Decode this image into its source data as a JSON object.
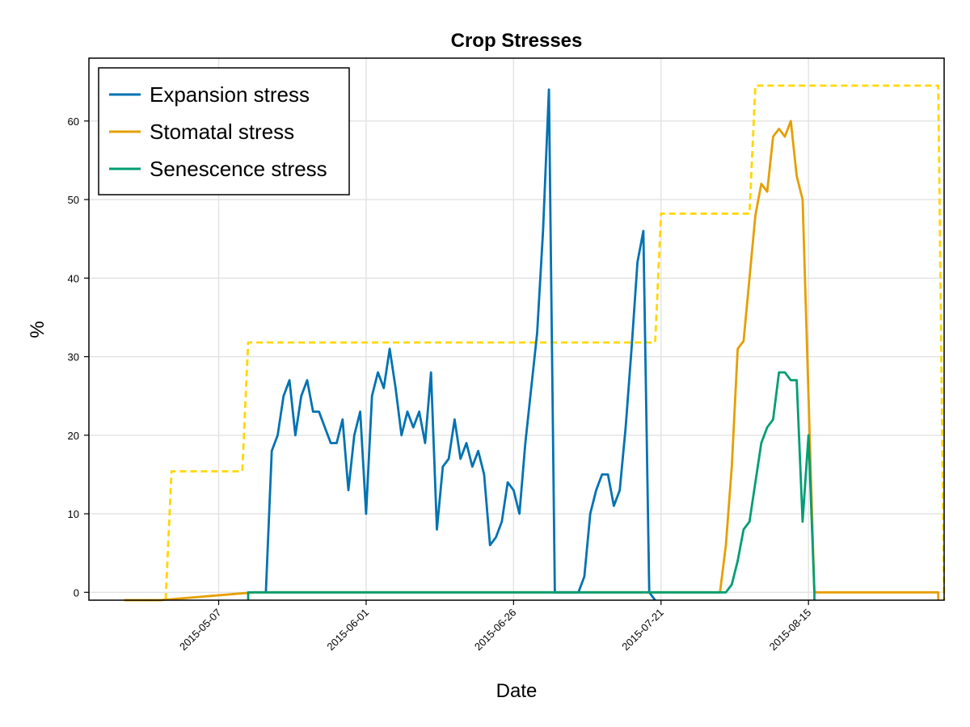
{
  "chart_data": {
    "type": "line",
    "title": "Crop Stresses",
    "xlabel": "Date",
    "ylabel": "%",
    "xlim": [
      "2015-04-15",
      "2015-09-07"
    ],
    "ylim": [
      -1,
      68
    ],
    "x_ticks": [
      "2015-05-07",
      "2015-06-01",
      "2015-06-26",
      "2015-07-21",
      "2015-08-15"
    ],
    "y_ticks": [
      0,
      10,
      20,
      30,
      40,
      50,
      60
    ],
    "grid": true,
    "legend_position": "top-left",
    "series": [
      {
        "name": "Expansion stress",
        "color": "#0072b2",
        "style": "solid",
        "points": [
          [
            "2015-05-15",
            0
          ],
          [
            "2015-05-16",
            18
          ],
          [
            "2015-05-17",
            20
          ],
          [
            "2015-05-18",
            25
          ],
          [
            "2015-05-19",
            27
          ],
          [
            "2015-05-20",
            20
          ],
          [
            "2015-05-21",
            25
          ],
          [
            "2015-05-22",
            27
          ],
          [
            "2015-05-23",
            23
          ],
          [
            "2015-05-24",
            23
          ],
          [
            "2015-05-25",
            21
          ],
          [
            "2015-05-26",
            19
          ],
          [
            "2015-05-27",
            19
          ],
          [
            "2015-05-28",
            22
          ],
          [
            "2015-05-29",
            13
          ],
          [
            "2015-05-30",
            20
          ],
          [
            "2015-05-31",
            23
          ],
          [
            "2015-06-01",
            10
          ],
          [
            "2015-06-02",
            25
          ],
          [
            "2015-06-03",
            28
          ],
          [
            "2015-06-04",
            26
          ],
          [
            "2015-06-05",
            31
          ],
          [
            "2015-06-06",
            26
          ],
          [
            "2015-06-07",
            20
          ],
          [
            "2015-06-08",
            23
          ],
          [
            "2015-06-09",
            21
          ],
          [
            "2015-06-10",
            23
          ],
          [
            "2015-06-11",
            19
          ],
          [
            "2015-06-12",
            28
          ],
          [
            "2015-06-13",
            8
          ],
          [
            "2015-06-14",
            16
          ],
          [
            "2015-06-15",
            17
          ],
          [
            "2015-06-16",
            22
          ],
          [
            "2015-06-17",
            17
          ],
          [
            "2015-06-18",
            19
          ],
          [
            "2015-06-19",
            16
          ],
          [
            "2015-06-20",
            18
          ],
          [
            "2015-06-21",
            15
          ],
          [
            "2015-06-22",
            6
          ],
          [
            "2015-06-23",
            7
          ],
          [
            "2015-06-24",
            9
          ],
          [
            "2015-06-25",
            14
          ],
          [
            "2015-06-26",
            13
          ],
          [
            "2015-06-27",
            10
          ],
          [
            "2015-06-28",
            19
          ],
          [
            "2015-06-29",
            26
          ],
          [
            "2015-06-30",
            33
          ],
          [
            "2015-07-01",
            46
          ],
          [
            "2015-07-02",
            64
          ],
          [
            "2015-07-03",
            0
          ],
          [
            "2015-07-04",
            0
          ],
          [
            "2015-07-05",
            0
          ],
          [
            "2015-07-06",
            0
          ],
          [
            "2015-07-07",
            0
          ],
          [
            "2015-07-08",
            2
          ],
          [
            "2015-07-09",
            10
          ],
          [
            "2015-07-10",
            13
          ],
          [
            "2015-07-11",
            15
          ],
          [
            "2015-07-12",
            15
          ],
          [
            "2015-07-13",
            11
          ],
          [
            "2015-07-14",
            13
          ],
          [
            "2015-07-15",
            21
          ],
          [
            "2015-07-16",
            31
          ],
          [
            "2015-07-17",
            42
          ],
          [
            "2015-07-18",
            46
          ],
          [
            "2015-07-19",
            0
          ],
          [
            "2015-07-20",
            -1
          ]
        ]
      },
      {
        "name": "Stomatal stress",
        "color": "#e69f00",
        "style": "solid",
        "points": [
          [
            "2015-04-21",
            -1
          ],
          [
            "2015-04-27",
            -1
          ],
          [
            "2015-05-13",
            0
          ],
          [
            "2015-07-31",
            0
          ],
          [
            "2015-08-01",
            6
          ],
          [
            "2015-08-02",
            16
          ],
          [
            "2015-08-03",
            31
          ],
          [
            "2015-08-04",
            32
          ],
          [
            "2015-08-05",
            40
          ],
          [
            "2015-08-06",
            48
          ],
          [
            "2015-08-07",
            52
          ],
          [
            "2015-08-08",
            51
          ],
          [
            "2015-08-09",
            58
          ],
          [
            "2015-08-10",
            59
          ],
          [
            "2015-08-11",
            58
          ],
          [
            "2015-08-12",
            60
          ],
          [
            "2015-08-13",
            53
          ],
          [
            "2015-08-14",
            50
          ],
          [
            "2015-08-15",
            25
          ],
          [
            "2015-08-16",
            0
          ],
          [
            "2015-09-06",
            0
          ],
          [
            "2015-09-06",
            -1
          ]
        ]
      },
      {
        "name": "Senescence stress",
        "color": "#009e73",
        "style": "solid",
        "points": [
          [
            "2015-05-12",
            -1
          ],
          [
            "2015-05-12",
            0
          ],
          [
            "2015-08-01",
            0
          ],
          [
            "2015-08-02",
            1
          ],
          [
            "2015-08-03",
            4
          ],
          [
            "2015-08-04",
            8
          ],
          [
            "2015-08-05",
            9
          ],
          [
            "2015-08-06",
            14
          ],
          [
            "2015-08-07",
            19
          ],
          [
            "2015-08-08",
            21
          ],
          [
            "2015-08-09",
            22
          ],
          [
            "2015-08-10",
            28
          ],
          [
            "2015-08-11",
            28
          ],
          [
            "2015-08-12",
            27
          ],
          [
            "2015-08-13",
            27
          ],
          [
            "2015-08-14",
            9
          ],
          [
            "2015-08-15",
            20
          ],
          [
            "2015-08-16",
            0
          ],
          [
            "2015-08-16",
            -1
          ]
        ]
      },
      {
        "name": "",
        "color": "#ffd700",
        "style": "dashed",
        "points": [
          [
            "2015-04-21",
            -1
          ],
          [
            "2015-04-28",
            -1
          ],
          [
            "2015-04-29",
            15.4
          ],
          [
            "2015-05-11",
            15.4
          ],
          [
            "2015-05-12",
            31.8
          ],
          [
            "2015-07-20",
            31.8
          ],
          [
            "2015-07-21",
            48.2
          ],
          [
            "2015-08-05",
            48.2
          ],
          [
            "2015-08-06",
            64.5
          ],
          [
            "2015-09-06",
            64.5
          ],
          [
            "2015-09-07",
            -1
          ]
        ]
      }
    ]
  }
}
